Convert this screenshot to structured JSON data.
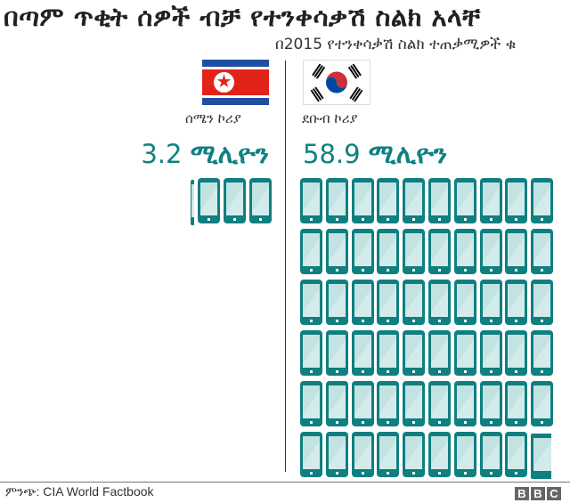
{
  "title": "በጣም ጥቂት ሰዎች ብቻ የተንቀሳቃሽ ስልክ አላቸ",
  "subtitle": "በ2015 የተንቀሳቃሽ ስልክ ተጠቃሚዎች ቁ",
  "north_korea": {
    "label": "ሰሜን ኮሪያ",
    "value_number": "3.2",
    "value_unit": "ሚሊዮን"
  },
  "south_korea": {
    "label": "ደቡብ ኮሪያ",
    "value_number": "58.9",
    "value_unit": "ሚሊዮን"
  },
  "footer": {
    "source": "ምንጭ: CIA World Factbook",
    "logo": [
      "B",
      "B",
      "C"
    ]
  },
  "colors": {
    "accent": "#118080",
    "phone": "#0f7f80",
    "screen": "#c3e3e2"
  },
  "chart_data": {
    "type": "pictogram",
    "title": "በጣም ጥቂት ሰዎች ብቻ የተንቀሳቃሽ ስልክ አላቸ",
    "subtitle": "በ2015 የተንቀሳቃሽ ስልክ ተጠቃሚዎች",
    "unit": "million mobile phone users (1 icon ≈ 1 million)",
    "categories": [
      "ሰሜን ኮሪያ",
      "ደቡብ ኮሪያ"
    ],
    "values": [
      3.2,
      58.9
    ],
    "source": "CIA World Factbook"
  }
}
